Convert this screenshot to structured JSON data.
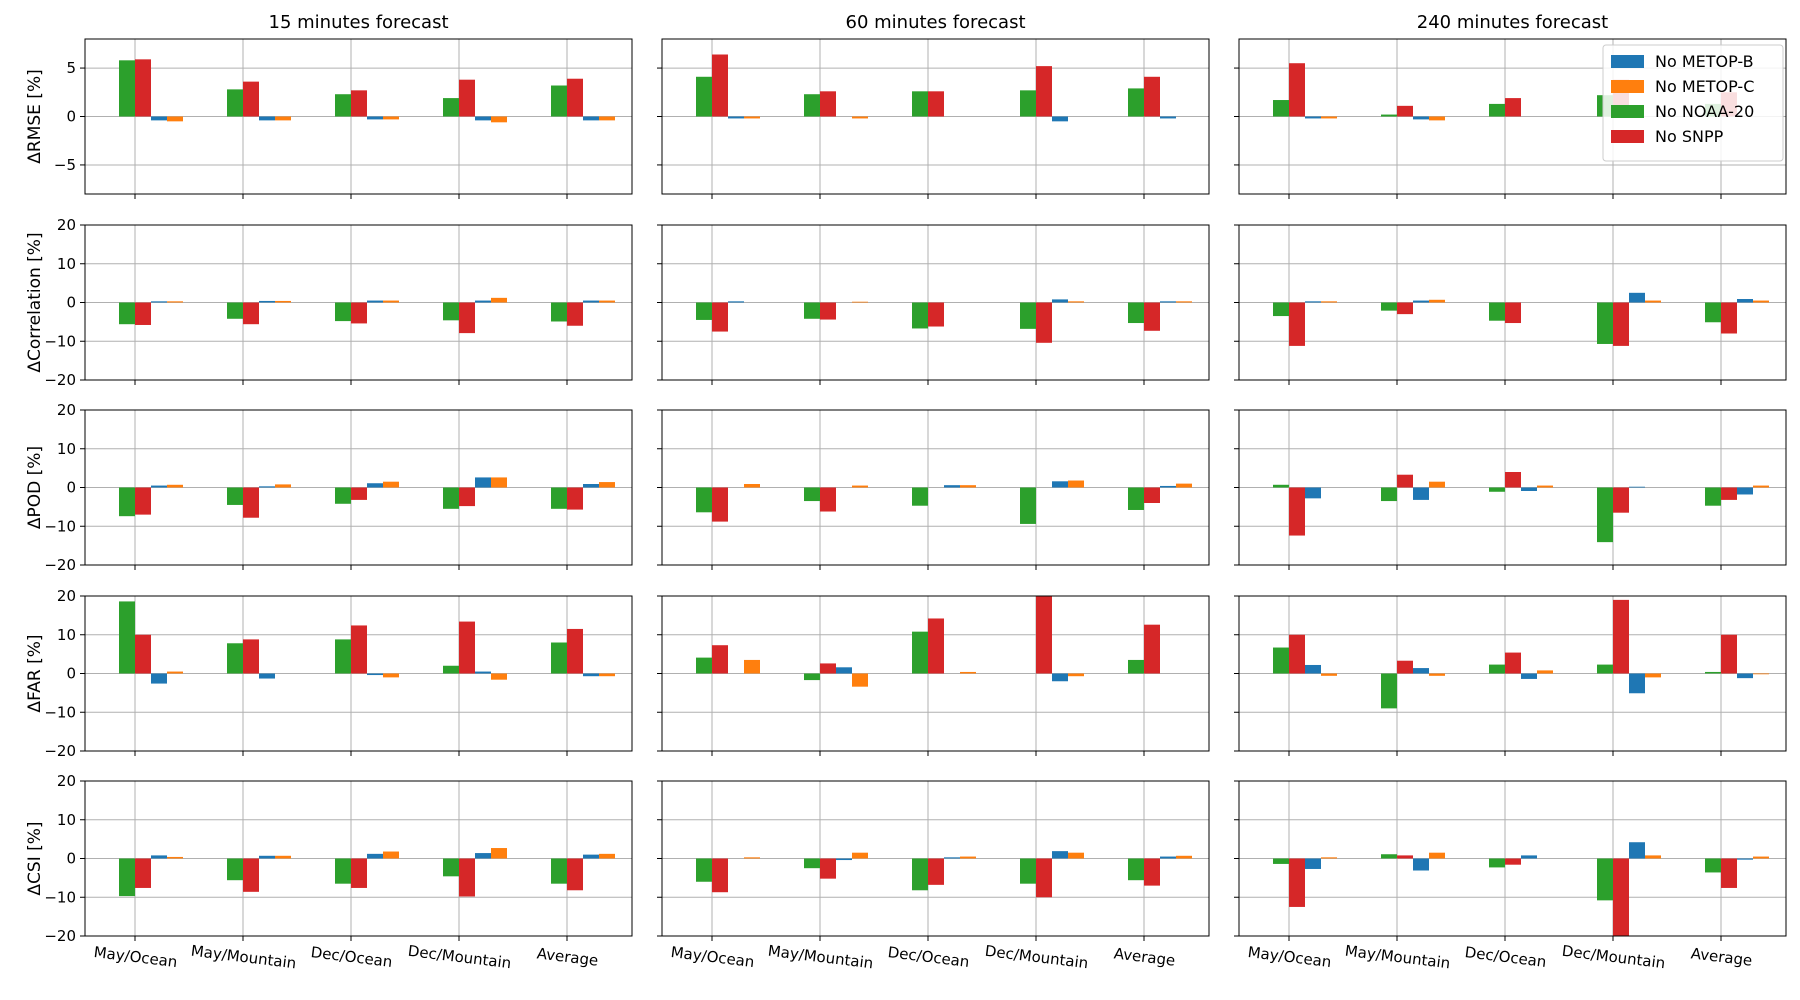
{
  "chart_data": {
    "type": "bar",
    "columns": [
      "15 minutes forecast",
      "60 minutes forecast",
      "240 minutes forecast"
    ],
    "categories": [
      "May/Ocean",
      "May/Mountain",
      "Dec/Ocean",
      "Dec/Mountain",
      "Average"
    ],
    "rows": [
      {
        "ylabel": "ΔRMSE [%]",
        "ylim": [
          -8,
          8
        ],
        "yticks": [
          -5,
          0,
          5
        ]
      },
      {
        "ylabel": "ΔCorrelation [%]",
        "ylim": [
          -20,
          20
        ],
        "yticks": [
          -20,
          -10,
          0,
          10,
          20
        ]
      },
      {
        "ylabel": "ΔPOD [%]",
        "ylim": [
          -20,
          20
        ],
        "yticks": [
          -20,
          -10,
          0,
          10,
          20
        ]
      },
      {
        "ylabel": "ΔFAR [%]",
        "ylim": [
          -20,
          20
        ],
        "yticks": [
          -20,
          -10,
          0,
          10,
          20
        ]
      },
      {
        "ylabel": "ΔCSI [%]",
        "ylim": [
          -20,
          20
        ],
        "yticks": [
          -20,
          -10,
          0,
          10,
          20
        ]
      }
    ],
    "series": [
      {
        "name": "No NOAA-20",
        "color": "#2ca02c"
      },
      {
        "name": "No SNPP",
        "color": "#d62728"
      },
      {
        "name": "No METOP-B",
        "color": "#1f77b4"
      },
      {
        "name": "No METOP-C",
        "color": "#ff7f0e"
      }
    ],
    "legend": {
      "placement": "top-right",
      "panel": "240 minutes forecast / ΔRMSE",
      "order": [
        "No METOP-B",
        "No METOP-C",
        "No NOAA-20",
        "No SNPP"
      ]
    },
    "grid": true,
    "values": [
      [
        [
          [
            5.8,
            5.9,
            -0.4,
            -0.5
          ],
          [
            2.8,
            3.6,
            -0.4,
            -0.4
          ],
          [
            2.3,
            2.7,
            -0.3,
            -0.3
          ],
          [
            1.9,
            3.8,
            -0.4,
            -0.6
          ],
          [
            3.2,
            3.9,
            -0.4,
            -0.4
          ]
        ],
        [
          [
            4.1,
            6.4,
            -0.2,
            -0.2
          ],
          [
            2.3,
            2.6,
            0.0,
            -0.2
          ],
          [
            2.6,
            2.6,
            0.0,
            0.0
          ],
          [
            2.7,
            5.2,
            -0.5,
            0.0
          ],
          [
            2.9,
            4.1,
            -0.2,
            0.0
          ]
        ],
        [
          [
            1.7,
            5.5,
            -0.2,
            -0.2
          ],
          [
            0.2,
            1.1,
            -0.3,
            -0.4
          ],
          [
            1.3,
            1.9,
            0.0,
            0.0
          ],
          [
            2.2,
            3.8,
            0.0,
            0.0
          ],
          [
            1.3,
            2.5,
            0.0,
            0.0
          ]
        ]
      ],
      [
        [
          [
            -5.6,
            -5.8,
            0.3,
            0.3
          ],
          [
            -4.2,
            -5.6,
            0.4,
            0.4
          ],
          [
            -4.8,
            -5.4,
            0.5,
            0.5
          ],
          [
            -4.6,
            -7.9,
            0.5,
            1.2
          ],
          [
            -4.9,
            -6.0,
            0.5,
            0.5
          ]
        ],
        [
          [
            -4.5,
            -7.5,
            0.3,
            0.0
          ],
          [
            -4.2,
            -4.4,
            0.0,
            0.2
          ],
          [
            -6.7,
            -6.2,
            0.0,
            0.0
          ],
          [
            -6.8,
            -10.4,
            0.8,
            0.3
          ],
          [
            -5.3,
            -7.3,
            0.3,
            0.3
          ]
        ],
        [
          [
            -3.5,
            -11.2,
            0.3,
            0.3
          ],
          [
            -2.1,
            -3.0,
            0.5,
            0.7
          ],
          [
            -4.7,
            -5.3,
            0.0,
            0.0
          ],
          [
            -10.7,
            -11.2,
            2.5,
            0.5
          ],
          [
            -5.1,
            -8.0,
            0.9,
            0.5
          ]
        ]
      ],
      [
        [
          [
            -7.4,
            -7.0,
            0.5,
            0.7
          ],
          [
            -4.5,
            -7.8,
            0.3,
            0.8
          ],
          [
            -4.2,
            -3.2,
            1.1,
            1.5
          ],
          [
            -5.5,
            -4.8,
            2.6,
            2.6
          ],
          [
            -5.5,
            -5.7,
            0.9,
            1.4
          ]
        ],
        [
          [
            -6.4,
            -8.8,
            0.0,
            0.9
          ],
          [
            -3.5,
            -6.2,
            0.0,
            0.5
          ],
          [
            -4.7,
            0.0,
            0.6,
            0.6
          ],
          [
            -9.4,
            0.0,
            1.6,
            1.8
          ],
          [
            -5.8,
            -4.0,
            0.4,
            1.0
          ]
        ],
        [
          [
            0.7,
            -12.4,
            -2.8,
            0.0
          ],
          [
            -3.5,
            3.3,
            -3.2,
            1.5
          ],
          [
            -1.1,
            4.0,
            -0.9,
            0.5
          ],
          [
            -14.1,
            -6.5,
            0.2,
            0.0
          ],
          [
            -4.7,
            -3.2,
            -1.8,
            0.5
          ]
        ]
      ],
      [
        [
          [
            18.6,
            10.0,
            -2.6,
            0.5
          ],
          [
            7.8,
            8.8,
            -1.3,
            0.0
          ],
          [
            8.8,
            12.4,
            -0.4,
            -1.0
          ],
          [
            2.0,
            13.4,
            0.5,
            -1.6
          ],
          [
            8.0,
            11.5,
            -0.7,
            -0.7
          ]
        ],
        [
          [
            4.1,
            7.3,
            0.0,
            3.5
          ],
          [
            -1.7,
            2.6,
            1.6,
            -3.4
          ],
          [
            10.8,
            14.2,
            0.0,
            0.4
          ],
          [
            0.0,
            20.0,
            -2.0,
            -0.7
          ],
          [
            3.5,
            12.6,
            0.0,
            0.0
          ]
        ],
        [
          [
            6.7,
            10.0,
            2.2,
            -0.6
          ],
          [
            -9.0,
            3.3,
            1.4,
            -0.6
          ],
          [
            2.3,
            5.4,
            -1.4,
            0.8
          ],
          [
            2.3,
            19.0,
            -5.1,
            -1.0
          ],
          [
            0.4,
            10.0,
            -1.2,
            -0.2
          ]
        ]
      ],
      [
        [
          [
            -9.7,
            -7.6,
            0.8,
            0.4
          ],
          [
            -5.6,
            -8.6,
            0.7,
            0.7
          ],
          [
            -6.5,
            -7.6,
            1.2,
            1.8
          ],
          [
            -4.6,
            -9.8,
            1.4,
            2.7
          ],
          [
            -6.5,
            -8.2,
            1.0,
            1.2
          ]
        ],
        [
          [
            -6.0,
            -8.7,
            0.0,
            0.3
          ],
          [
            -2.5,
            -5.2,
            -0.4,
            1.5
          ],
          [
            -8.2,
            -6.8,
            0.3,
            0.5
          ],
          [
            -6.5,
            -10.0,
            1.9,
            1.5
          ],
          [
            -5.6,
            -7.0,
            0.5,
            0.7
          ]
        ],
        [
          [
            -1.4,
            -12.5,
            -2.7,
            0.3
          ],
          [
            1.1,
            0.8,
            -3.1,
            1.5
          ],
          [
            -2.3,
            -1.6,
            0.8,
            0.0
          ],
          [
            -10.8,
            -20.0,
            4.2,
            0.8
          ],
          [
            -3.6,
            -7.6,
            -0.3,
            0.5
          ]
        ]
      ]
    ]
  }
}
